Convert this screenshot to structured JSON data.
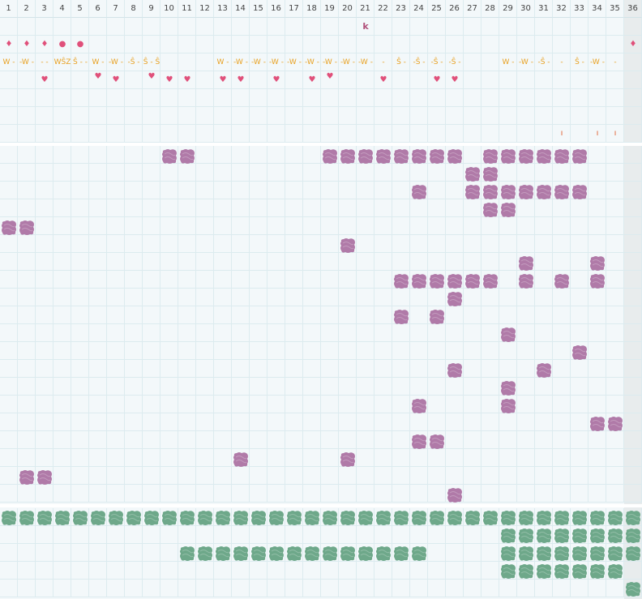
{
  "columns": [
    "1",
    "2",
    "3",
    "4",
    "5",
    "6",
    "7",
    "8",
    "9",
    "10",
    "11",
    "12",
    "13",
    "14",
    "15",
    "16",
    "17",
    "18",
    "19",
    "20",
    "21",
    "22",
    "23",
    "24",
    "25",
    "26",
    "27",
    "28",
    "29",
    "30",
    "31",
    "32",
    "33",
    "34",
    "35",
    "36"
  ],
  "colors": {
    "grid": "#dcebef",
    "background": "#f3f8fa",
    "purple": "#b07aa8",
    "green": "#6ea88a",
    "pink": "#e0507a",
    "orange": "#e8a020",
    "red_orange": "#e06030",
    "k_purple": "#b0507a"
  },
  "top_marks": [
    {
      "row": 1,
      "col": 21,
      "text": "k",
      "color": "k_purple",
      "icon": "letter-k"
    },
    {
      "row": 2,
      "col": 1,
      "text": "♦",
      "color": "pink",
      "icon": "drop-icon"
    },
    {
      "row": 2,
      "col": 2,
      "text": "♦",
      "color": "pink",
      "icon": "drop-icon"
    },
    {
      "row": 2,
      "col": 3,
      "text": "♦",
      "color": "pink",
      "icon": "drop-icon"
    },
    {
      "row": 2,
      "col": 4,
      "text": "●",
      "color": "pink",
      "icon": "dot-icon"
    },
    {
      "row": 2,
      "col": 5,
      "text": "●",
      "color": "pink",
      "icon": "dot-icon"
    },
    {
      "row": 2,
      "col": 36,
      "text": "♦",
      "color": "pink",
      "icon": "drop-icon"
    },
    {
      "row": 3,
      "col": 1,
      "text": "W -",
      "color": "orange",
      "icon": "w-mark"
    },
    {
      "row": 3,
      "col": 2,
      "text": "-W -",
      "color": "orange",
      "icon": "w-mark"
    },
    {
      "row": 3,
      "col": 3,
      "text": "- -",
      "color": "orange",
      "icon": "dash-mark"
    },
    {
      "row": 3,
      "col": 4,
      "text": "WŜZ",
      "color": "orange",
      "icon": "wsz-mark"
    },
    {
      "row": 3,
      "col": 5,
      "text": "Ŝ - -",
      "color": "orange",
      "icon": "s-mark"
    },
    {
      "row": 3,
      "col": 6,
      "text": "W -",
      "color": "orange",
      "icon": "w-mark"
    },
    {
      "row": 3,
      "col": 7,
      "text": "-W -",
      "color": "orange",
      "icon": "w-mark"
    },
    {
      "row": 3,
      "col": 8,
      "text": "-Ŝ -",
      "color": "orange",
      "icon": "s-mark"
    },
    {
      "row": 3,
      "col": 9,
      "text": "Ŝ - Ŝ",
      "color": "orange",
      "icon": "s-mark"
    },
    {
      "row": 3,
      "col": 13,
      "text": "W -",
      "color": "orange",
      "icon": "w-mark"
    },
    {
      "row": 3,
      "col": 14,
      "text": "-W -",
      "color": "orange",
      "icon": "w-mark"
    },
    {
      "row": 3,
      "col": 15,
      "text": "-W -",
      "color": "orange",
      "icon": "w-mark"
    },
    {
      "row": 3,
      "col": 16,
      "text": "-W -",
      "color": "orange",
      "icon": "w-mark"
    },
    {
      "row": 3,
      "col": 17,
      "text": "-W -",
      "color": "orange",
      "icon": "w-mark"
    },
    {
      "row": 3,
      "col": 18,
      "text": "-W -",
      "color": "orange",
      "icon": "w-mark"
    },
    {
      "row": 3,
      "col": 19,
      "text": "-W -",
      "color": "orange",
      "icon": "w-mark"
    },
    {
      "row": 3,
      "col": 20,
      "text": "-W -",
      "color": "orange",
      "icon": "w-mark"
    },
    {
      "row": 3,
      "col": 21,
      "text": "-W -",
      "color": "orange",
      "icon": "w-mark"
    },
    {
      "row": 3,
      "col": 22,
      "text": "-",
      "color": "orange",
      "icon": "dash-mark"
    },
    {
      "row": 3,
      "col": 23,
      "text": "Ŝ -",
      "color": "orange",
      "icon": "s-mark"
    },
    {
      "row": 3,
      "col": 24,
      "text": "-Ŝ -",
      "color": "orange",
      "icon": "s-mark"
    },
    {
      "row": 3,
      "col": 25,
      "text": "-Ŝ -",
      "color": "orange",
      "icon": "s-mark"
    },
    {
      "row": 3,
      "col": 26,
      "text": "-Ŝ -",
      "color": "orange",
      "icon": "s-mark"
    },
    {
      "row": 3,
      "col": 29,
      "text": "W -",
      "color": "orange",
      "icon": "w-mark"
    },
    {
      "row": 3,
      "col": 30,
      "text": "-W -",
      "color": "orange",
      "icon": "w-mark"
    },
    {
      "row": 3,
      "col": 31,
      "text": "-Ŝ -",
      "color": "orange",
      "icon": "s-mark"
    },
    {
      "row": 3,
      "col": 32,
      "text": "-",
      "color": "orange",
      "icon": "dash-mark"
    },
    {
      "row": 3,
      "col": 33,
      "text": "Ŝ -",
      "color": "orange",
      "icon": "s-mark"
    },
    {
      "row": 3,
      "col": 34,
      "text": "-W -",
      "color": "orange",
      "icon": "w-mark"
    },
    {
      "row": 3,
      "col": 35,
      "text": "-",
      "color": "orange",
      "icon": "dash-mark"
    },
    {
      "row": 4,
      "col": 3,
      "text": "♥",
      "color": "pink",
      "icon": "heart-icon"
    },
    {
      "row": 4,
      "col": 6,
      "text": "♥",
      "color": "pink",
      "icon": "heart-icon",
      "offset": -1
    },
    {
      "row": 4,
      "col": 7,
      "text": "♥",
      "color": "pink",
      "icon": "heart-icon"
    },
    {
      "row": 4,
      "col": 9,
      "text": "♥",
      "color": "pink",
      "icon": "heart-icon",
      "offset": -1
    },
    {
      "row": 4,
      "col": 10,
      "text": "♥",
      "color": "pink",
      "icon": "heart-icon"
    },
    {
      "row": 4,
      "col": 11,
      "text": "♥",
      "color": "pink",
      "icon": "heart-icon"
    },
    {
      "row": 4,
      "col": 13,
      "text": "♥",
      "color": "pink",
      "icon": "heart-icon"
    },
    {
      "row": 4,
      "col": 14,
      "text": "♥",
      "color": "pink",
      "icon": "heart-icon"
    },
    {
      "row": 4,
      "col": 16,
      "text": "♥",
      "color": "pink",
      "icon": "heart-icon"
    },
    {
      "row": 4,
      "col": 18,
      "text": "♥",
      "color": "pink",
      "icon": "heart-icon"
    },
    {
      "row": 4,
      "col": 19,
      "text": "♥",
      "color": "pink",
      "icon": "heart-icon",
      "offset": -1
    },
    {
      "row": 4,
      "col": 22,
      "text": "♥",
      "color": "pink",
      "icon": "heart-icon"
    },
    {
      "row": 4,
      "col": 25,
      "text": "♥",
      "color": "pink",
      "icon": "heart-icon"
    },
    {
      "row": 4,
      "col": 26,
      "text": "♥",
      "color": "pink",
      "icon": "heart-icon"
    },
    {
      "row": 7,
      "col": 32,
      "text": "ı",
      "color": "red_orange",
      "icon": "tick-mark"
    },
    {
      "row": 7,
      "col": 34,
      "text": "ı",
      "color": "red_orange",
      "icon": "tick-mark"
    },
    {
      "row": 7,
      "col": 35,
      "text": "ı",
      "color": "red_orange",
      "icon": "tick-mark"
    }
  ],
  "purple_rows": [
    [
      10,
      11,
      19,
      20,
      21,
      22,
      23,
      24,
      25,
      26,
      28,
      29,
      30,
      31,
      32,
      33
    ],
    [
      27,
      28
    ],
    [
      24,
      27,
      28,
      29,
      30,
      31,
      32,
      33
    ],
    [
      28,
      29
    ],
    [
      1,
      2
    ],
    [
      20
    ],
    [
      30,
      34
    ],
    [
      23,
      24,
      25,
      26,
      27,
      28,
      30,
      32,
      34
    ],
    [
      26
    ],
    [
      23,
      25
    ],
    [
      29
    ],
    [
      33
    ],
    [
      26,
      31
    ],
    [
      29
    ],
    [
      24,
      29
    ],
    [
      34,
      35
    ],
    [
      24,
      25
    ],
    [
      14,
      20
    ],
    [
      2,
      3
    ],
    [
      26
    ]
  ],
  "green_rows": [
    [
      1,
      2,
      3,
      4,
      5,
      6,
      7,
      8,
      9,
      10,
      11,
      12,
      13,
      14,
      15,
      16,
      17,
      18,
      19,
      20,
      21,
      22,
      23,
      24,
      25,
      26,
      27,
      28,
      29,
      30,
      31,
      32,
      33,
      34,
      35,
      36
    ],
    [
      29,
      30,
      31,
      32,
      33,
      34,
      35,
      36
    ],
    [
      11,
      12,
      13,
      14,
      15,
      16,
      17,
      18,
      19,
      20,
      21,
      22,
      23,
      24,
      29,
      30,
      31,
      32,
      33,
      34,
      35,
      36
    ],
    [
      29,
      30,
      31,
      32,
      33,
      34,
      35
    ],
    [
      36
    ]
  ]
}
